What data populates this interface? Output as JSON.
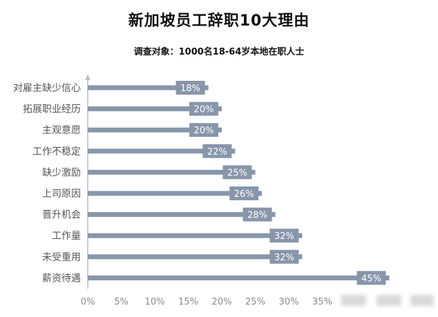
{
  "chart_data": {
    "type": "bar",
    "orientation": "horizontal",
    "title": "新加坡员工辞职10大理由",
    "subtitle": "调查对象：1000名18-64岁本地在职人士",
    "categories": [
      "对雇主缺少信心",
      "拓展职业经历",
      "主观意愿",
      "工作不稳定",
      "缺少激励",
      "上司原因",
      "晋升机会",
      "工作量",
      "未受重用",
      "薪资待遇"
    ],
    "values": [
      18,
      20,
      20,
      22,
      25,
      26,
      28,
      32,
      32,
      45
    ],
    "value_labels": [
      "18%",
      "20%",
      "20%",
      "22%",
      "25%",
      "26%",
      "28%",
      "32%",
      "32%",
      "45%"
    ],
    "x_ticks": [
      0,
      5,
      10,
      15,
      20,
      25,
      30,
      35
    ],
    "x_tick_labels": [
      "0%",
      "5%",
      "10%",
      "15%",
      "20%",
      "25%",
      "30%",
      "35%"
    ],
    "xlim": [
      0,
      45
    ],
    "unit": "%",
    "grid": false,
    "colors": {
      "bar": "#8896aa",
      "label_box": "#8896aa",
      "axis": "#b4bdcc"
    }
  }
}
